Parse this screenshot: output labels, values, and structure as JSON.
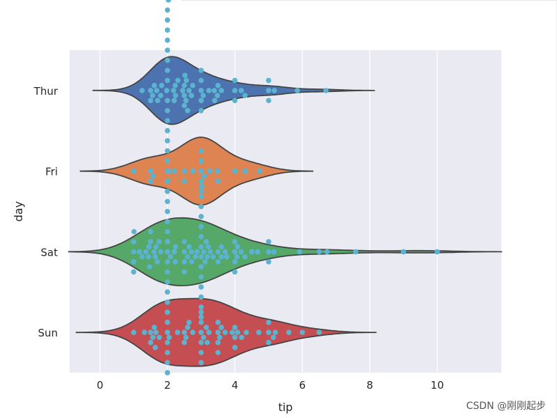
{
  "chart_data": {
    "type": "violin",
    "xlabel": "tip",
    "ylabel": "day",
    "xlim": [
      -0.9,
      11.9
    ],
    "x_ticks": [
      0,
      2,
      4,
      6,
      8,
      10
    ],
    "grid": true,
    "categories": [
      "Thur",
      "Fri",
      "Sat",
      "Sun"
    ],
    "colors": {
      "Thur": "#4c72b0",
      "Fri": "#dd8452",
      "Sat": "#55a868",
      "Sun": "#c44e52",
      "swarm": "#5bb3d0",
      "background": "#eaeaf2"
    },
    "swarm_points": {
      "Thur": [
        1.25,
        1.5,
        1.5,
        1.56,
        1.61,
        1.68,
        1.71,
        1.8,
        1.83,
        1.98,
        2,
        2,
        2,
        2,
        2,
        2,
        2,
        2,
        2,
        2,
        2,
        2,
        2,
        2,
        2,
        2,
        2.01,
        2.03,
        2.18,
        2.2,
        2.23,
        2.24,
        2.31,
        2.45,
        2.5,
        2.5,
        2.5,
        2.52,
        2.55,
        2.56,
        2.6,
        2.64,
        2.71,
        2.75,
        3,
        3,
        3,
        3,
        3,
        3.06,
        3.23,
        3.39,
        3.4,
        3.48,
        3.5,
        3.6,
        4,
        4,
        4,
        4.19,
        4.3,
        5,
        5,
        5,
        5.17,
        5.85,
        6.7
      ],
      "Fri": [
        1,
        1.5,
        1.5,
        1.58,
        2.2,
        2.5,
        2.5,
        2.75,
        3,
        3,
        3,
        3,
        3,
        3.09,
        3.25,
        3.48,
        3.5,
        4,
        4.3,
        4.73
      ],
      "Sat": [
        1,
        1,
        1,
        1,
        1.01,
        1.17,
        1.25,
        1.36,
        1.44,
        1.45,
        1.47,
        1.5,
        1.5,
        1.6,
        1.64,
        1.66,
        1.7,
        1.75,
        1.8,
        2,
        2,
        2,
        2,
        2,
        2,
        2,
        2,
        2,
        2,
        2,
        2,
        2,
        2,
        2,
        2,
        2.03,
        2.09,
        2.2,
        2.23,
        2.24,
        2.5,
        2.5,
        2.5,
        2.5,
        2.6,
        2.64,
        2.71,
        2.72,
        2.83,
        2.88,
        3,
        3,
        3,
        3,
        3,
        3,
        3,
        3,
        3,
        3,
        3,
        3,
        3,
        3.02,
        3.08,
        3.12,
        3.15,
        3.18,
        3.21,
        3.27,
        3.35,
        3.5,
        3.5,
        3.6,
        3.6,
        3.71,
        3.76,
        4,
        4,
        4,
        4,
        4.06,
        4.08,
        4.19,
        4.3,
        4.5,
        4.67,
        5,
        5,
        5,
        5.16,
        5.92,
        6.5,
        6.73,
        7.58,
        9,
        10
      ],
      "Sun": [
        1,
        1.32,
        1.5,
        1.5,
        1.57,
        1.61,
        1.64,
        1.66,
        1.76,
        2,
        2,
        2,
        2,
        2,
        2,
        2,
        2,
        2.05,
        2.3,
        2.5,
        2.5,
        2.55,
        2.6,
        2.64,
        2.75,
        3,
        3,
        3,
        3,
        3,
        3,
        3.07,
        3.15,
        3.18,
        3.23,
        3.5,
        3.5,
        3.5,
        3.5,
        3.55,
        3.6,
        3.71,
        3.92,
        4,
        4,
        4,
        4.08,
        4.2,
        4.34,
        4.71,
        5,
        5,
        5,
        5.14,
        5.2,
        5.6,
        6,
        6.5
      ]
    }
  },
  "watermark": "CSDN @刚刚起步"
}
